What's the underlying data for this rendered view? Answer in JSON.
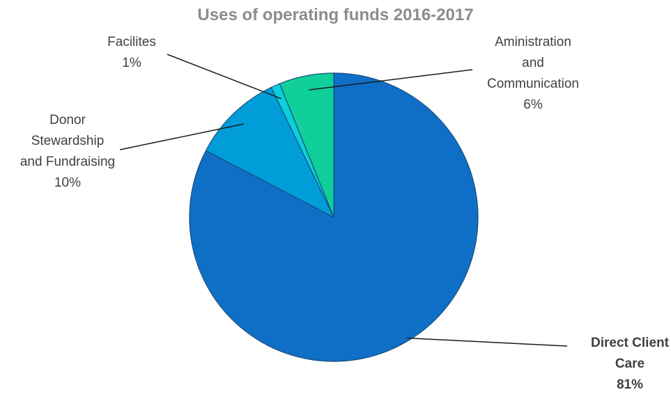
{
  "chart_data": {
    "type": "pie",
    "title": "Uses of operating funds 2016-2017",
    "slices": [
      {
        "name": "Direct Client Care",
        "label_lines": [
          "Direct Client",
          "Care"
        ],
        "value": 81,
        "value_label": "81%",
        "color": "#0f6fc6",
        "emphasis": true
      },
      {
        "name": "Donor Stewardship and Fundraising",
        "label_lines": [
          "Donor",
          "Stewardship",
          "and Fundraising"
        ],
        "value": 10,
        "value_label": "10%",
        "color": "#009dd9",
        "emphasis": false
      },
      {
        "name": "Facilites",
        "label_lines": [
          "Facilites"
        ],
        "value": 1,
        "value_label": "1%",
        "color": "#0bd0d9",
        "emphasis": false
      },
      {
        "name": "Aministration and Communication",
        "label_lines": [
          "Aministration",
          "and",
          "Communication"
        ],
        "value": 6,
        "value_label": "6%",
        "color": "#10cf9b",
        "emphasis": false
      }
    ],
    "legend": "none",
    "label_style": "outside-with-leader-lines"
  }
}
